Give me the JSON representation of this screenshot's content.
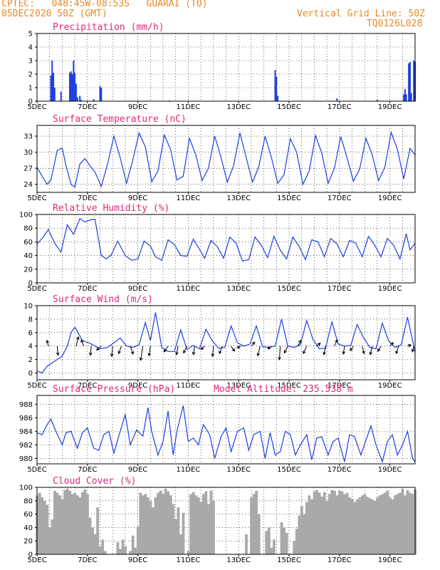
{
  "header": {
    "line1": "CPTEC:   048:45W-08:53S   GUARAI (TO)",
    "line2": "05DEC2020 50Z (GMT)",
    "right1": "Vertical Grid Line: 50Z",
    "right2": "TQ0126L028"
  },
  "colors": {
    "header": "#e8892a",
    "title": "#e0287a",
    "series": "#1f3fe0",
    "cloud": "#a9a9a9",
    "arrow": "#000000"
  },
  "x_tick_labels": [
    "5DEC",
    "7DEC",
    "9DEC",
    "11DEC",
    "13DEC",
    "15DEC",
    "17DEC",
    "19DEC"
  ],
  "chart_data": [
    {
      "type": "bar",
      "title": "Precipitation (mm/h)",
      "x_start_day": 5,
      "x_end_day": 20,
      "ylim": [
        0,
        5
      ],
      "yticks": [
        0,
        1,
        2,
        3,
        4,
        5
      ],
      "bars": [
        [
          5.55,
          1.9
        ],
        [
          5.6,
          3.0
        ],
        [
          5.65,
          2.1
        ],
        [
          5.7,
          1.0
        ],
        [
          5.95,
          0.7
        ],
        [
          6.3,
          2.1
        ],
        [
          6.35,
          2.2
        ],
        [
          6.4,
          2.0
        ],
        [
          6.45,
          3.0
        ],
        [
          6.5,
          2.1
        ],
        [
          6.55,
          1.3
        ],
        [
          6.6,
          0.3
        ],
        [
          6.7,
          0.4
        ],
        [
          6.75,
          0.1
        ],
        [
          7.25,
          0.15
        ],
        [
          7.5,
          1.1
        ],
        [
          7.55,
          1.0
        ],
        [
          10.25,
          0.05
        ],
        [
          14.45,
          2.3
        ],
        [
          14.5,
          1.8
        ],
        [
          14.55,
          0.4
        ],
        [
          16.9,
          0.2
        ],
        [
          18.5,
          0.1
        ],
        [
          19.55,
          0.5
        ],
        [
          19.6,
          0.9
        ],
        [
          19.65,
          0.5
        ],
        [
          19.75,
          2.8
        ],
        [
          19.8,
          2.9
        ],
        [
          19.85,
          0.6
        ],
        [
          19.95,
          3.0
        ],
        [
          20.0,
          2.9
        ]
      ]
    },
    {
      "type": "line",
      "title": "Surface Temperature (nC)",
      "ylim": [
        22.5,
        35
      ],
      "yticks": [
        24,
        27,
        30,
        33
      ],
      "x": [
        5,
        5.2,
        5.4,
        5.55,
        5.8,
        6.0,
        6.15,
        6.35,
        6.5,
        6.7,
        6.9,
        7.1,
        7.3,
        7.55,
        7.8,
        8.05,
        8.3,
        8.55,
        8.8,
        9.05,
        9.3,
        9.55,
        9.8,
        10.05,
        10.3,
        10.55,
        10.8,
        11.05,
        11.3,
        11.55,
        11.8,
        12.05,
        12.3,
        12.55,
        12.8,
        13.05,
        13.3,
        13.55,
        13.8,
        14.05,
        14.3,
        14.55,
        14.8,
        15.05,
        15.3,
        15.55,
        15.8,
        16.05,
        16.3,
        16.55,
        16.8,
        17.05,
        17.3,
        17.55,
        17.8,
        18.05,
        18.3,
        18.55,
        18.8,
        19.05,
        19.3,
        19.55,
        19.8,
        20.0
      ],
      "y": [
        27.2,
        25.5,
        24.0,
        24.8,
        30.3,
        30.8,
        27.5,
        24.0,
        23.5,
        27.8,
        28.8,
        27.5,
        26.3,
        23.6,
        27.8,
        33.0,
        29.0,
        24.2,
        28.5,
        33.6,
        31.0,
        24.5,
        26.5,
        33.2,
        30.5,
        24.8,
        25.5,
        32.6,
        29.5,
        24.7,
        27.0,
        33.0,
        29.0,
        24.4,
        27.5,
        33.6,
        29.0,
        24.4,
        27.3,
        33.0,
        29.0,
        24.2,
        25.8,
        32.5,
        30.0,
        24.0,
        26.5,
        33.1,
        29.8,
        24.2,
        27.0,
        32.9,
        29.0,
        24.6,
        26.8,
        32.6,
        29.5,
        24.7,
        27.2,
        33.7,
        30.5,
        25.0,
        30.7,
        29.5
      ]
    },
    {
      "type": "line",
      "title": "Relative Humidity (%)",
      "ylim": [
        0,
        100
      ],
      "yticks": [
        0,
        20,
        40,
        60,
        80,
        100
      ],
      "x": [
        5,
        5.2,
        5.45,
        5.7,
        5.95,
        6.2,
        6.45,
        6.7,
        6.9,
        7.1,
        7.3,
        7.55,
        7.75,
        7.95,
        8.2,
        8.5,
        8.75,
        9.0,
        9.25,
        9.5,
        9.7,
        9.95,
        10.2,
        10.45,
        10.7,
        10.95,
        11.2,
        11.4,
        11.65,
        11.9,
        12.15,
        12.4,
        12.65,
        12.9,
        13.15,
        13.4,
        13.65,
        13.9,
        14.15,
        14.4,
        14.65,
        14.9,
        15.15,
        15.4,
        15.65,
        15.9,
        16.15,
        16.4,
        16.65,
        16.9,
        17.15,
        17.4,
        17.65,
        17.9,
        18.15,
        18.4,
        18.65,
        18.9,
        19.15,
        19.4,
        19.65,
        19.8,
        20.0
      ],
      "y": [
        57,
        65,
        78,
        58,
        45,
        85,
        71,
        94,
        89,
        92,
        93,
        40,
        35,
        41,
        61,
        40,
        33,
        35,
        61,
        54,
        38,
        33,
        63,
        56,
        40,
        39,
        64,
        52,
        36,
        62,
        53,
        36,
        67,
        58,
        32,
        34,
        67,
        55,
        37,
        68,
        48,
        35,
        67,
        53,
        34,
        63,
        60,
        38,
        65,
        57,
        38,
        62,
        58,
        38,
        68,
        55,
        38,
        65,
        55,
        35,
        72,
        48,
        58
      ]
    },
    {
      "type": "line",
      "title": "Surface Wind (m/s)",
      "ylim": [
        -1,
        10
      ],
      "yticks": [
        0,
        2,
        4,
        6,
        8,
        10
      ],
      "x": [
        5,
        5.2,
        5.4,
        5.6,
        5.8,
        6.0,
        6.2,
        6.35,
        6.5,
        6.6,
        6.8,
        7.05,
        7.3,
        7.5,
        7.8,
        8.05,
        8.3,
        8.55,
        8.8,
        9.05,
        9.3,
        9.5,
        9.7,
        9.95,
        10.2,
        10.45,
        10.7,
        10.95,
        11.2,
        11.45,
        11.7,
        11.95,
        12.2,
        12.45,
        12.7,
        12.95,
        13.2,
        13.45,
        13.7,
        13.95,
        14.2,
        14.45,
        14.7,
        14.95,
        15.2,
        15.45,
        15.7,
        15.95,
        16.2,
        16.45,
        16.7,
        16.95,
        17.2,
        17.45,
        17.7,
        17.95,
        18.2,
        18.45,
        18.7,
        18.95,
        19.2,
        19.45,
        19.7,
        19.95,
        20.0
      ],
      "y": [
        0.3,
        0.0,
        1.0,
        1.5,
        2.0,
        2.5,
        4.0,
        6.0,
        6.8,
        6.2,
        4.8,
        4.5,
        4.0,
        3.6,
        3.8,
        4.5,
        5.2,
        4.0,
        3.8,
        4.2,
        7.5,
        4.8,
        9.0,
        3.8,
        3.2,
        3.2,
        6.4,
        3.5,
        4.1,
        3.6,
        6.5,
        4.8,
        3.7,
        3.8,
        7.0,
        4.5,
        4.0,
        4.3,
        7.0,
        3.9,
        3.8,
        4.0,
        8.0,
        4.0,
        3.8,
        4.2,
        7.8,
        5.0,
        3.6,
        3.7,
        7.6,
        4.3,
        4.0,
        4.1,
        7.2,
        5.3,
        3.8,
        3.6,
        7.4,
        4.8,
        3.8,
        4.2,
        8.3,
        4.0,
        3.0
      ],
      "vectors": [
        [
          5.45,
          -0.25,
          1.0
        ],
        [
          5.8,
          0.15,
          -1.6
        ],
        [
          6.55,
          0.4,
          1.6
        ],
        [
          6.85,
          -0.4,
          1.1
        ],
        [
          7.15,
          -0.15,
          -1.6
        ],
        [
          7.55,
          -0.8,
          -0.7
        ],
        [
          8.0,
          -0.15,
          -1.8
        ],
        [
          8.35,
          -0.5,
          -1.3
        ],
        [
          8.7,
          0.5,
          -1.4
        ],
        [
          9.2,
          -0.4,
          -2.5
        ],
        [
          9.5,
          -0.25,
          -1.7
        ],
        [
          10.2,
          -0.7,
          -1.0
        ],
        [
          10.6,
          -0.3,
          -1.5
        ],
        [
          10.95,
          -0.6,
          -1.2
        ],
        [
          11.25,
          -0.2,
          -1.5
        ],
        [
          11.65,
          -0.65,
          -0.6
        ],
        [
          12.0,
          -0.15,
          -1.8
        ],
        [
          12.35,
          -0.5,
          -1.3
        ],
        [
          12.7,
          0.6,
          -0.9
        ],
        [
          13.1,
          -0.7,
          -0.3
        ],
        [
          13.5,
          0.6,
          0.7
        ],
        [
          13.85,
          -0.4,
          -1.7
        ],
        [
          14.3,
          -0.6,
          -0.5
        ],
        [
          14.65,
          -0.15,
          -2.4
        ],
        [
          14.95,
          -0.6,
          -1.2
        ],
        [
          15.35,
          0.5,
          1.0
        ],
        [
          15.7,
          -0.6,
          -1.3
        ],
        [
          16.1,
          0.6,
          0.5
        ],
        [
          16.45,
          -0.3,
          -1.5
        ],
        [
          16.8,
          0.5,
          1.1
        ],
        [
          17.2,
          -0.2,
          -1.4
        ],
        [
          17.55,
          -0.55,
          -0.8
        ],
        [
          17.9,
          0.35,
          -1.3
        ],
        [
          18.3,
          -0.35,
          -1.5
        ],
        [
          18.65,
          -0.55,
          -0.9
        ],
        [
          19.0,
          0.6,
          0.6
        ],
        [
          19.35,
          -0.45,
          -1.3
        ],
        [
          19.7,
          0.6,
          0.2
        ],
        [
          19.95,
          -0.25,
          -1.0
        ]
      ]
    },
    {
      "type": "line",
      "title": "Surface Pressure (hPa)",
      "annotation": "Model Altitude: 235.538 m",
      "ylim": [
        979.2,
        989.3
      ],
      "yticks": [
        980,
        982,
        984,
        986,
        988
      ],
      "x": [
        5,
        5.2,
        5.4,
        5.55,
        5.75,
        6.0,
        6.15,
        6.35,
        6.6,
        6.8,
        7.0,
        7.25,
        7.45,
        7.65,
        7.85,
        8.05,
        8.3,
        8.5,
        8.7,
        8.95,
        9.2,
        9.4,
        9.55,
        9.8,
        10.0,
        10.2,
        10.4,
        10.55,
        10.8,
        11.0,
        11.2,
        11.4,
        11.6,
        11.85,
        12.05,
        12.3,
        12.5,
        12.7,
        12.95,
        13.2,
        13.4,
        13.6,
        13.85,
        14.05,
        14.25,
        14.45,
        14.65,
        14.85,
        15.05,
        15.25,
        15.45,
        15.7,
        15.9,
        16.1,
        16.3,
        16.55,
        16.75,
        16.95,
        17.2,
        17.4,
        17.6,
        17.85,
        18.05,
        18.25,
        18.45,
        18.7,
        18.9,
        19.1,
        19.3,
        19.5,
        19.7,
        19.9,
        20.0
      ],
      "y": [
        983.8,
        983.5,
        985.0,
        985.8,
        984.0,
        982.0,
        983.8,
        984.0,
        981.5,
        983.8,
        984.5,
        981.5,
        981.2,
        983.5,
        984.0,
        980.8,
        984.0,
        986.5,
        982.0,
        984.2,
        983.3,
        987.5,
        984.0,
        980.5,
        982.5,
        987.0,
        980.5,
        984.0,
        987.8,
        982.5,
        983.0,
        982.0,
        985.0,
        983.5,
        980.0,
        983.2,
        984.5,
        981.0,
        984.0,
        984.5,
        981.2,
        983.5,
        984.0,
        980.0,
        983.8,
        980.5,
        981.0,
        984.0,
        983.5,
        980.5,
        982.0,
        983.5,
        979.8,
        983.0,
        983.2,
        980.5,
        982.5,
        983.0,
        979.5,
        983.5,
        983.2,
        980.5,
        982.7,
        984.8,
        982.0,
        979.5,
        982.5,
        983.5,
        980.5,
        982.0,
        984.0,
        980.0,
        979.5
      ]
    },
    {
      "type": "bar",
      "title": "Cloud Cover (%)",
      "ylim": [
        0,
        100
      ],
      "yticks": [
        0,
        20,
        40,
        60,
        80,
        100
      ],
      "x": [
        5.0,
        5.1,
        5.2,
        5.3,
        5.4,
        5.5,
        5.6,
        5.7,
        5.8,
        5.9,
        6.0,
        6.1,
        6.2,
        6.3,
        6.4,
        6.5,
        6.6,
        6.7,
        6.8,
        6.9,
        7.0,
        7.1,
        7.2,
        7.3,
        7.4,
        7.5,
        7.6,
        7.7,
        7.8,
        7.9,
        8.0,
        8.1,
        8.2,
        8.3,
        8.4,
        8.5,
        8.6,
        8.7,
        8.8,
        8.9,
        9.0,
        9.1,
        9.2,
        9.3,
        9.4,
        9.5,
        9.6,
        9.7,
        9.8,
        9.9,
        10.0,
        10.1,
        10.2,
        10.3,
        10.4,
        10.5,
        10.6,
        10.7,
        10.8,
        10.9,
        11.0,
        11.1,
        11.2,
        11.3,
        11.4,
        11.5,
        11.6,
        11.7,
        11.8,
        11.9,
        12.0,
        12.1,
        12.2,
        12.3,
        12.4,
        12.5,
        12.6,
        12.7,
        12.8,
        12.9,
        13.0,
        13.1,
        13.2,
        13.3,
        13.4,
        13.5,
        13.6,
        13.7,
        13.8,
        13.9,
        14.0,
        14.1,
        14.2,
        14.3,
        14.4,
        14.5,
        14.6,
        14.7,
        14.8,
        14.9,
        15.0,
        15.1,
        15.2,
        15.3,
        15.4,
        15.5,
        15.6,
        15.7,
        15.8,
        15.9,
        16.0,
        16.1,
        16.2,
        16.3,
        16.4,
        16.5,
        16.6,
        16.7,
        16.8,
        16.9,
        17.0,
        17.1,
        17.2,
        17.3,
        17.4,
        17.5,
        17.6,
        17.7,
        17.8,
        17.9,
        18.0,
        18.1,
        18.2,
        18.3,
        18.4,
        18.5,
        18.6,
        18.7,
        18.8,
        18.9,
        19.0,
        19.1,
        19.2,
        19.3,
        19.4,
        19.5,
        19.6,
        19.7,
        19.8,
        19.9,
        20.0
      ],
      "values": [
        88,
        92,
        85,
        80,
        74,
        40,
        52,
        95,
        92,
        88,
        82,
        96,
        98,
        95,
        90,
        92,
        88,
        85,
        93,
        97,
        90,
        55,
        40,
        30,
        70,
        12,
        22,
        5,
        0,
        0,
        0,
        0,
        18,
        8,
        22,
        12,
        0,
        5,
        28,
        10,
        42,
        92,
        88,
        90,
        85,
        80,
        70,
        85,
        92,
        95,
        90,
        98,
        94,
        88,
        75,
        52,
        70,
        30,
        62,
        0,
        5,
        90,
        93,
        88,
        85,
        78,
        90,
        94,
        75,
        95,
        80,
        0,
        0,
        0,
        0,
        0,
        0,
        0,
        0,
        0,
        0,
        0,
        0,
        30,
        0,
        85,
        90,
        95,
        60,
        0,
        0,
        35,
        40,
        10,
        22,
        0,
        0,
        48,
        40,
        32,
        0,
        0,
        20,
        38,
        58,
        72,
        60,
        78,
        88,
        82,
        94,
        96,
        92,
        86,
        93,
        80,
        90,
        96,
        95,
        88,
        95,
        94,
        90,
        92,
        85,
        83,
        78,
        82,
        85,
        88,
        90,
        86,
        84,
        82,
        80,
        85,
        88,
        90,
        92,
        95,
        85,
        82,
        88,
        90,
        92,
        98,
        88,
        96,
        92,
        90,
        97
      ]
    }
  ]
}
